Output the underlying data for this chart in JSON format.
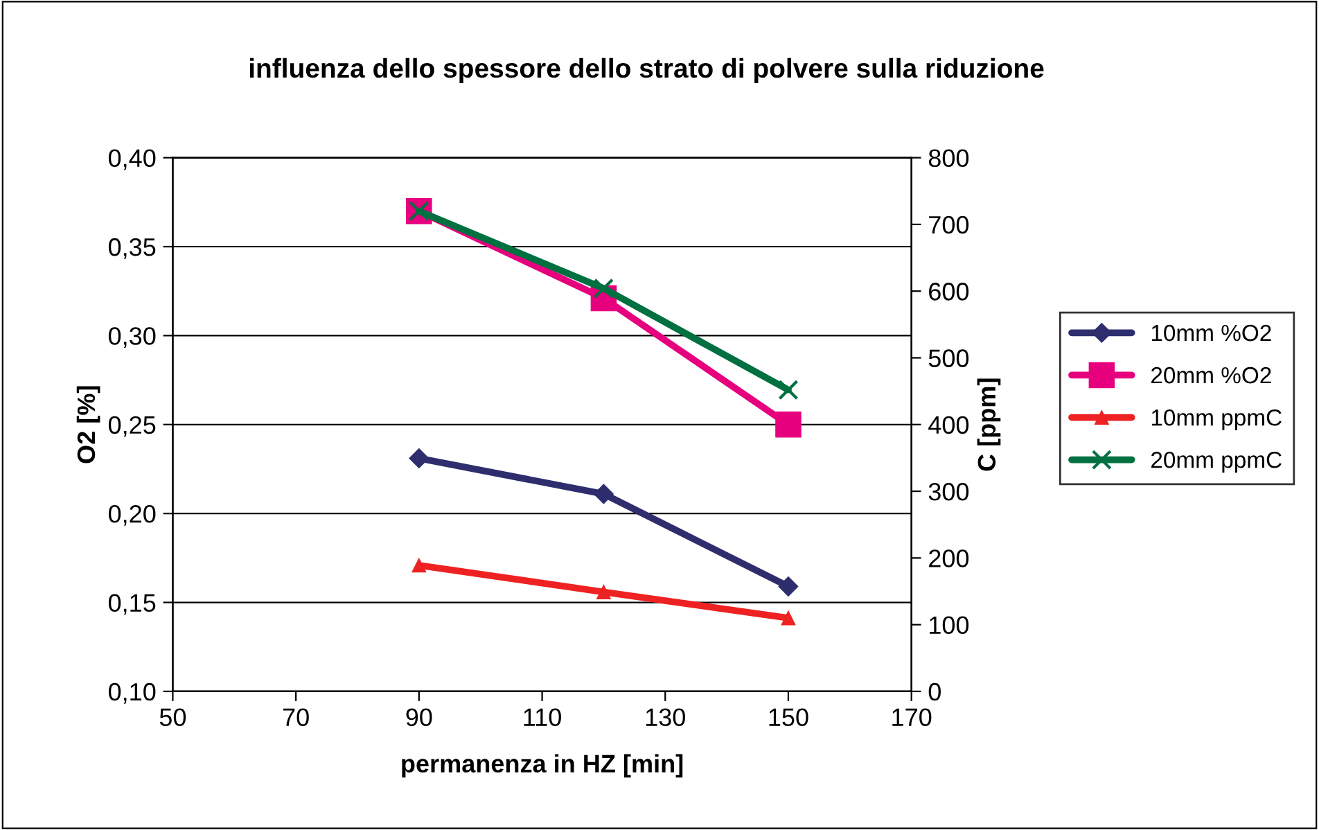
{
  "chart_data": {
    "type": "line",
    "title": "influenza dello spessore dello strato di polvere sulla riduzione",
    "xlabel": "permanenza in HZ [min]",
    "ylabel": "O2 [%]",
    "y2label": "C [ppm]",
    "x": [
      90,
      120,
      150
    ],
    "series": [
      {
        "name": "10mm %O2",
        "color": "#2e2e6e",
        "values": [
          0.231,
          0.211,
          0.159
        ],
        "marker": "diamond"
      },
      {
        "name": "20mm %O2",
        "color": "#e6007e",
        "values": [
          0.37,
          0.321,
          0.25
        ],
        "marker": "square"
      },
      {
        "name": "10mm ppmC",
        "color": "#ee2222",
        "values": [
          189,
          149,
          110
        ],
        "marker": "triangle",
        "axis": "y2"
      },
      {
        "name": "20mm ppmC",
        "color": "#007040",
        "values": [
          720,
          604,
          452
        ],
        "marker": "cross",
        "axis": "y2"
      }
    ],
    "xlim": [
      50,
      170
    ],
    "xticks": [
      50,
      70,
      90,
      110,
      130,
      150,
      170
    ],
    "ylim": [
      0.1,
      0.4
    ],
    "yticks": [
      {
        "value": 0.1,
        "label": "0,10"
      },
      {
        "value": 0.15,
        "label": "0,15"
      },
      {
        "value": 0.2,
        "label": "0,20"
      },
      {
        "value": 0.25,
        "label": "0,25"
      },
      {
        "value": 0.3,
        "label": "0,30"
      },
      {
        "value": 0.35,
        "label": "0,35"
      },
      {
        "value": 0.4,
        "label": "0,40"
      }
    ],
    "y2lim": [
      0,
      800
    ],
    "y2ticks": [
      0,
      100,
      200,
      300,
      400,
      500,
      600,
      700,
      800
    ],
    "grid": "y",
    "legend": "right",
    "line_style": "solid"
  }
}
